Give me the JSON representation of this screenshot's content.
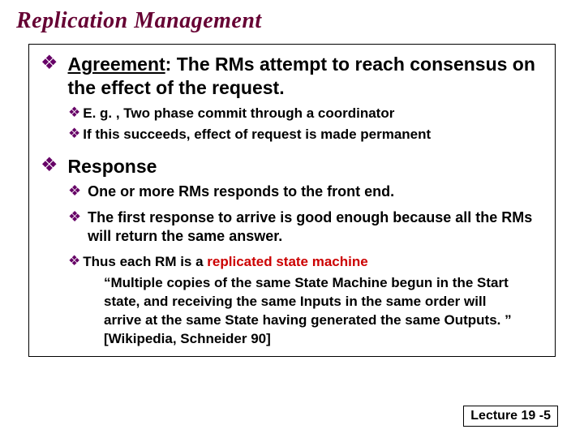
{
  "title_color": "#660033",
  "bullet_color": "#660066",
  "red_color": "#cc0000",
  "title": "Replication Management",
  "agreement": {
    "heading": "Agreement",
    "text": ": The RMs attempt to reach consensus on the effect of the request.",
    "sub1": "E. g. , Two phase commit through a coordinator",
    "sub2": "If this succeeds, effect of request is made permanent"
  },
  "response": {
    "heading": "Response",
    "sub1": "One or more RMs responds to the front end.",
    "sub2": "The first response to arrive is good enough because all the RMs will return the same answer.",
    "sub3_prefix": "Thus each RM is a ",
    "sub3_red": "replicated state machine",
    "quote": "“Multiple copies of the same State Machine begun in the Start state, and receiving the same Inputs in the same order will arrive at the same State having generated the same Outputs. ” [Wikipedia, Schneider 90]"
  },
  "footer": "Lecture 19 -5"
}
